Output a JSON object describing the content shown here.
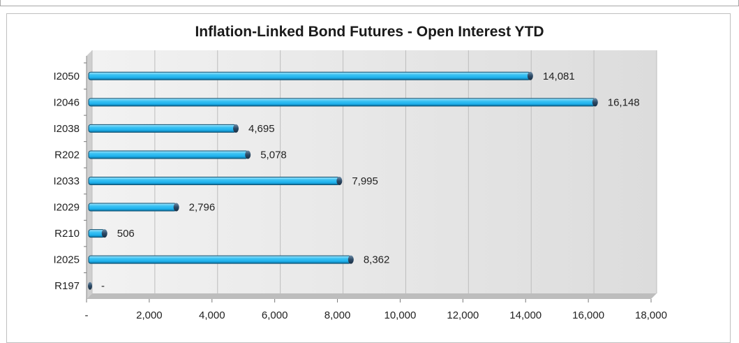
{
  "chart_data": {
    "type": "bar",
    "orientation": "horizontal",
    "title": "Inflation-Linked Bond Futures - Open Interest YTD",
    "xlabel": "",
    "ylabel": "",
    "categories": [
      "I2050",
      "I2046",
      "I2038",
      "R202",
      "I2033",
      "I2029",
      "R210",
      "I2025",
      "R197"
    ],
    "values": [
      14081,
      16148,
      4695,
      5078,
      7995,
      2796,
      506,
      8362,
      0
    ],
    "value_labels": [
      "14,081",
      "16,148",
      "4,695",
      "5,078",
      "7,995",
      "2,796",
      "506",
      "8,362",
      "-"
    ],
    "xlim": [
      0,
      18000
    ],
    "xticks": [
      0,
      2000,
      4000,
      6000,
      8000,
      10000,
      12000,
      14000,
      16000,
      18000
    ],
    "xtick_labels": [
      "-",
      "2,000",
      "4,000",
      "6,000",
      "8,000",
      "10,000",
      "12,000",
      "14,000",
      "16,000",
      "18,000"
    ],
    "grid": true,
    "legend": "none",
    "colors": {
      "bar_fill": "#1fb2ee",
      "bar_highlight": "#a5e4fb",
      "bar_edge": "#1f3f5c",
      "plot_wall": "#e6e6e6",
      "gridline": "#bdbdbd"
    }
  }
}
